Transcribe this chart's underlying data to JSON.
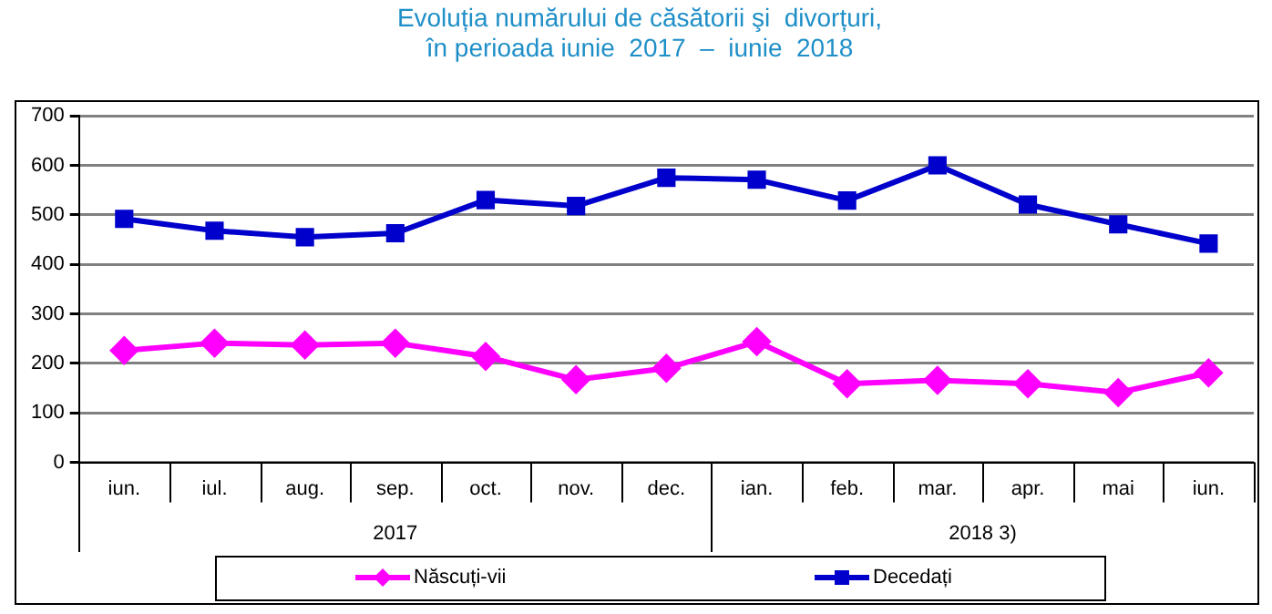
{
  "chart_data": {
    "type": "line",
    "title": "Evoluția numărului de căsătorii şi  divorțuri,\nîn perioada iunie  2017  –  iunie  2018",
    "categories": [
      "iun.",
      "iul.",
      "aug.",
      "sep.",
      "oct.",
      "nov.",
      "dec.",
      "ian.",
      "feb.",
      "mar.",
      "apr.",
      "mai",
      "iun."
    ],
    "series": [
      {
        "name": "Născuți-vii",
        "color": "#ff00ff",
        "marker": "diamond",
        "values": [
          226,
          241,
          237,
          241,
          214,
          167,
          190,
          244,
          159,
          166,
          159,
          141,
          181
        ]
      },
      {
        "name": "Decedați",
        "color": "#0000cc",
        "marker": "square",
        "values": [
          492,
          468,
          455,
          463,
          530,
          518,
          575,
          571,
          529,
          600,
          521,
          481,
          442
        ]
      }
    ],
    "ylim": [
      0,
      700
    ],
    "yticks": [
      0,
      100,
      200,
      300,
      400,
      500,
      600,
      700
    ],
    "grid": "y",
    "legend": "bottom",
    "annotations": [
      "2017",
      "2018 3)"
    ]
  }
}
